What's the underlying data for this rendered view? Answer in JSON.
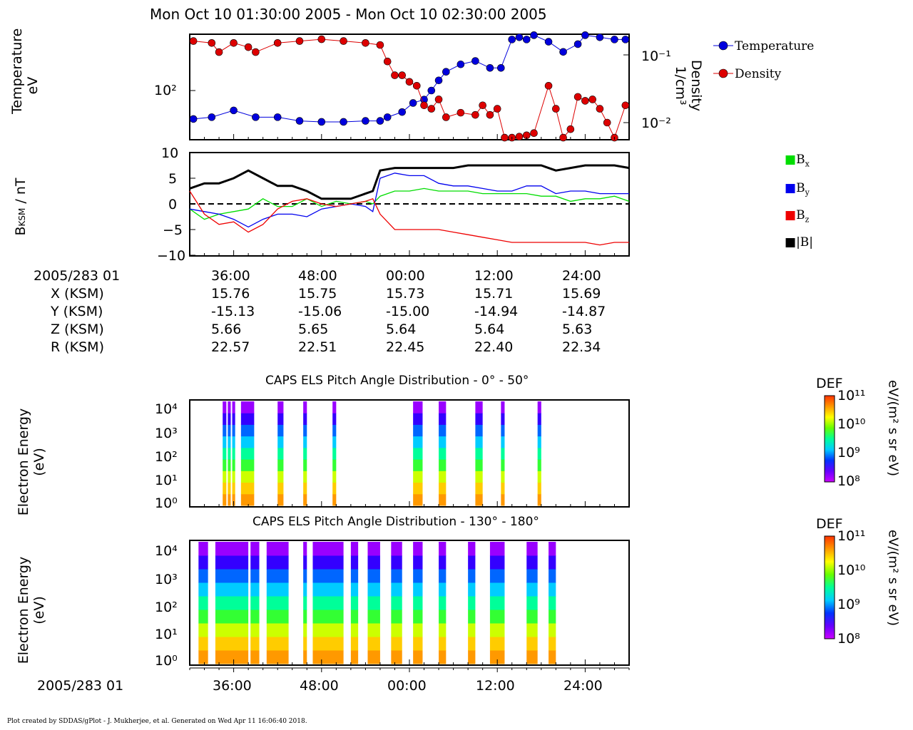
{
  "title": "Mon Oct 10 01:30:00 2005 - Mon Oct 10 02:30:00 2005",
  "footer": "Plot created by SDDAS/gPlot - J. Mukherjee, et al.  Generated on Wed Apr 11 16:06:40 2018.",
  "colors": {
    "temperature": "#0000dd",
    "density": "#dd0000",
    "bx": "#00dd00",
    "by": "#0000ee",
    "bz": "#ee0000",
    "bmag": "#000000"
  },
  "chart_data": [
    {
      "type": "scatter",
      "panel": "plasma",
      "ylabel_left": "Temperature\neV",
      "ylabel_right": "Density\n1/cm³",
      "yscale": "log",
      "left_ticks": [
        "10²"
      ],
      "right_ticks": [
        "10⁻¹",
        "10⁻²"
      ],
      "xlim_min": [
        30,
        90
      ],
      "legend": [
        "Temperature",
        "Density"
      ],
      "series": [
        {
          "name": "Temperature",
          "unit": "eV",
          "x": [
            30.5,
            33,
            36,
            39,
            42,
            45,
            48,
            51,
            54,
            56,
            57,
            59,
            60.5,
            62,
            63,
            64,
            65,
            67,
            69,
            71,
            72.5,
            74,
            75,
            76,
            77,
            79,
            81,
            83,
            84,
            86,
            88,
            89.5
          ],
          "y": [
            60,
            62,
            70,
            62,
            62,
            58,
            57,
            57,
            58,
            58,
            62,
            68,
            80,
            85,
            100,
            120,
            140,
            160,
            170,
            150,
            150,
            250,
            260,
            250,
            270,
            240,
            200,
            230,
            270,
            260,
            250,
            250
          ]
        },
        {
          "name": "Density",
          "unit": "1/cm³",
          "x": [
            30.5,
            33,
            34,
            36,
            38,
            39,
            42,
            45,
            48,
            51,
            54,
            56,
            57,
            58,
            59,
            60,
            61,
            62,
            63,
            64,
            65,
            67,
            69,
            70,
            71,
            72,
            73,
            74,
            75,
            76,
            77,
            79,
            80,
            81,
            82,
            83,
            84,
            85,
            86,
            87,
            88,
            89.5
          ],
          "y": [
            0.16,
            0.15,
            0.11,
            0.15,
            0.13,
            0.11,
            0.15,
            0.16,
            0.17,
            0.16,
            0.15,
            0.14,
            0.08,
            0.05,
            0.05,
            0.04,
            0.035,
            0.018,
            0.016,
            0.022,
            0.012,
            0.014,
            0.013,
            0.018,
            0.013,
            0.016,
            0.006,
            0.006,
            0.0062,
            0.0065,
            0.007,
            0.035,
            0.016,
            0.006,
            0.008,
            0.024,
            0.021,
            0.022,
            0.016,
            0.01,
            0.006,
            0.018
          ]
        }
      ]
    },
    {
      "type": "line",
      "panel": "magnetic",
      "ylabel": "BKSM / nT",
      "ylim": [
        -10,
        10
      ],
      "yticks": [
        -10,
        -5,
        0,
        5,
        10
      ],
      "xlim_min": [
        30,
        90
      ],
      "legend": [
        "Bx",
        "By",
        "Bz",
        "|B|"
      ],
      "x": [
        30,
        32,
        34,
        36,
        38,
        40,
        42,
        44,
        46,
        48,
        50,
        52,
        54,
        55,
        56,
        58,
        60,
        62,
        64,
        66,
        68,
        70,
        72,
        74,
        76,
        78,
        80,
        82,
        84,
        86,
        88,
        90
      ],
      "series": [
        {
          "name": "Bx",
          "values": [
            -1,
            -3,
            -2,
            -1.5,
            -1,
            1,
            -0.5,
            -0.5,
            1,
            -0.5,
            0.5,
            0,
            0.5,
            0,
            1.5,
            2.5,
            2.5,
            3,
            2.5,
            2.5,
            2.5,
            2,
            2,
            2,
            2,
            1.5,
            1.5,
            0.5,
            1,
            1,
            1.5,
            0.5
          ]
        },
        {
          "name": "By",
          "values": [
            -1,
            -1.5,
            -2,
            -3,
            -4.5,
            -3,
            -2,
            -2,
            -2.5,
            -1,
            -0.5,
            0,
            -0.5,
            -1.5,
            5,
            6,
            5.5,
            5.5,
            4,
            3.5,
            3.5,
            3,
            2.5,
            2.5,
            3.5,
            3.5,
            2,
            2.5,
            2.5,
            2,
            2,
            2
          ]
        },
        {
          "name": "Bz",
          "values": [
            2.5,
            -2,
            -4,
            -3.5,
            -5.5,
            -4,
            -1,
            0.5,
            1,
            0,
            -0.5,
            0,
            0.5,
            1,
            -2,
            -5,
            -5,
            -5,
            -5,
            -5.5,
            -6,
            -6.5,
            -7,
            -7.5,
            -7.5,
            -7.5,
            -7.5,
            -7.5,
            -7.5,
            -8,
            -7.5,
            -7.5
          ]
        },
        {
          "name": "|B|",
          "values": [
            3,
            4,
            4,
            5,
            6.5,
            5,
            3.5,
            3.5,
            2.5,
            1,
            1,
            1,
            2,
            2.5,
            6.5,
            7,
            7,
            7,
            7,
            7,
            7.5,
            7.5,
            7.5,
            7.5,
            7.5,
            7.5,
            6.5,
            7,
            7.5,
            7.5,
            7.5,
            7
          ]
        }
      ]
    },
    {
      "type": "heatmap",
      "panel": "spectrogram-1",
      "title": "CAPS ELS Pitch Angle Distribution - 0° - 50°",
      "ylabel": "Electron Energy\n(eV)",
      "yscale": "log",
      "yticks": [
        "10⁰",
        "10¹",
        "10²",
        "10³",
        "10⁴"
      ],
      "colorbar_label": "DEF",
      "colorbar_unit": "eV/(m² s sr eV)",
      "colorbar_ticks": [
        "10¹¹",
        "10¹⁰",
        "10⁹",
        "10⁸"
      ],
      "data_intervals_min": [
        [
          34.5,
          35
        ],
        [
          35.2,
          35.6
        ],
        [
          35.8,
          36.2
        ],
        [
          37,
          38.8
        ],
        [
          42,
          42.8
        ],
        [
          45.5,
          46
        ],
        [
          49.5,
          50
        ],
        [
          60.5,
          61.8
        ],
        [
          64,
          65
        ],
        [
          69,
          70
        ],
        [
          72.5,
          73
        ],
        [
          77.5,
          78
        ]
      ]
    },
    {
      "type": "heatmap",
      "panel": "spectrogram-2",
      "title": "CAPS ELS Pitch Angle Distribution - 130° - 180°",
      "ylabel": "Electron Energy\n(eV)",
      "yscale": "log",
      "yticks": [
        "10⁰",
        "10¹",
        "10²",
        "10³",
        "10⁴"
      ],
      "colorbar_label": "DEF",
      "colorbar_unit": "eV/(m² s sr eV)",
      "colorbar_ticks": [
        "10¹¹",
        "10¹⁰",
        "10⁹",
        "10⁸"
      ],
      "data_intervals_min": [
        [
          31.2,
          32.5
        ],
        [
          33.5,
          38
        ],
        [
          38.3,
          39.5
        ],
        [
          40.5,
          43.5
        ],
        [
          45.5,
          46
        ],
        [
          46.8,
          51
        ],
        [
          52,
          53
        ],
        [
          54.3,
          56
        ],
        [
          57.5,
          59
        ],
        [
          60.5,
          61.8
        ],
        [
          64,
          65
        ],
        [
          68,
          69
        ],
        [
          71,
          73
        ],
        [
          76,
          77.5
        ],
        [
          79,
          80
        ]
      ]
    }
  ],
  "annotation": {
    "header": "2005/283 01",
    "row_labels": [
      "X (KSM)",
      "Y (KSM)",
      "Z (KSM)",
      "R (KSM)"
    ],
    "times": [
      "36:00",
      "48:00",
      "00:00",
      "12:00",
      "24:00"
    ],
    "values": [
      [
        "15.76",
        "15.75",
        "15.73",
        "15.71",
        "15.69"
      ],
      [
        "-15.13",
        "-15.06",
        "-15.00",
        "-14.94",
        "-14.87"
      ],
      [
        "5.66",
        "5.65",
        "5.64",
        "5.64",
        "5.63"
      ],
      [
        "22.57",
        "22.51",
        "22.45",
        "22.40",
        "22.34"
      ]
    ]
  },
  "bottom_axis": {
    "header": "2005/283 01",
    "times": [
      "36:00",
      "48:00",
      "00:00",
      "12:00",
      "24:00"
    ]
  }
}
